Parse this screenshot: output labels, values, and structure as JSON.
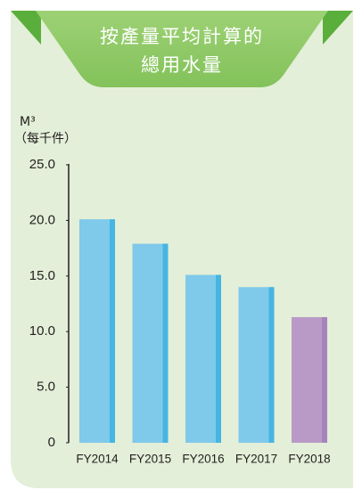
{
  "chart_data": {
    "type": "bar",
    "title": [
      "按產量平均計算的",
      "總用水量"
    ],
    "y_label": [
      "M³",
      "（每千件）"
    ],
    "categories": [
      "FY2014",
      "FY2015",
      "FY2016",
      "FY2017",
      "FY2018"
    ],
    "values": [
      20.1,
      17.9,
      15.1,
      14.0,
      11.3
    ],
    "colors": [
      "#7fc9ea",
      "#7fc9ea",
      "#7fc9ea",
      "#7fc9ea",
      "#b99ac7"
    ],
    "edge_colors": [
      "#45b5e2",
      "#45b5e2",
      "#45b5e2",
      "#45b5e2",
      "#a684bb"
    ],
    "ylim": [
      0,
      25
    ],
    "yticks": [
      0,
      {
        "value": 5,
        "label": "5.0"
      },
      {
        "value": 10,
        "label": "10.0"
      },
      {
        "value": 15,
        "label": "15.0"
      },
      {
        "value": 20,
        "label": "20.0"
      },
      {
        "value": 25,
        "label": "25.0"
      }
    ],
    "grid": false
  }
}
